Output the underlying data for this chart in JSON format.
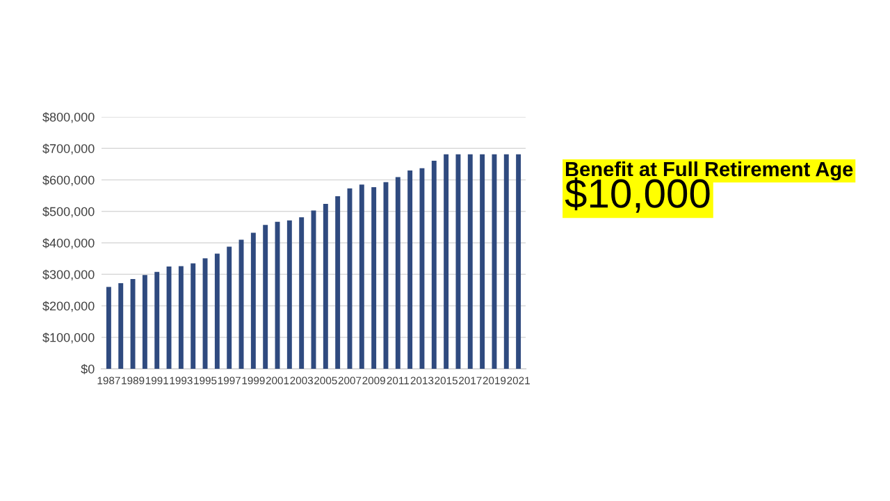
{
  "chart_data": {
    "type": "bar",
    "categories": [
      "1987",
      null,
      "1989",
      null,
      "1991",
      null,
      "1993",
      null,
      "1995",
      null,
      "1997",
      null,
      "1999",
      null,
      "2001",
      null,
      "2003",
      null,
      "2005",
      null,
      "2007",
      null,
      "2009",
      null,
      "2011",
      null,
      "2013",
      null,
      "2015",
      null,
      "2017",
      null,
      "2019",
      null,
      "2021"
    ],
    "values": [
      260000,
      272000,
      285000,
      298000,
      308000,
      325000,
      326000,
      335000,
      351000,
      366000,
      388000,
      410000,
      432000,
      457000,
      467000,
      471000,
      481000,
      503000,
      524000,
      548000,
      573000,
      585000,
      577000,
      593000,
      609000,
      630000,
      637000,
      661000,
      681000,
      681000,
      681000,
      681000,
      681000,
      681000,
      681000
    ],
    "color": "#2f4a7f",
    "ylim": [
      0,
      800000
    ],
    "yticks": [
      {
        "value": 0,
        "label": "$0"
      },
      {
        "value": 100000,
        "label": "$100,000"
      },
      {
        "value": 200000,
        "label": "$200,000"
      },
      {
        "value": 300000,
        "label": "$300,000"
      },
      {
        "value": 400000,
        "label": "$400,000"
      },
      {
        "value": 500000,
        "label": "$500,000"
      },
      {
        "value": 600000,
        "label": "$600,000"
      },
      {
        "value": 700000,
        "label": "$700,000"
      },
      {
        "value": 800000,
        "label": "$800,000"
      }
    ],
    "grid": "y",
    "annotations": [
      "Benefit at Full Retirement Age",
      "$10,000"
    ]
  }
}
